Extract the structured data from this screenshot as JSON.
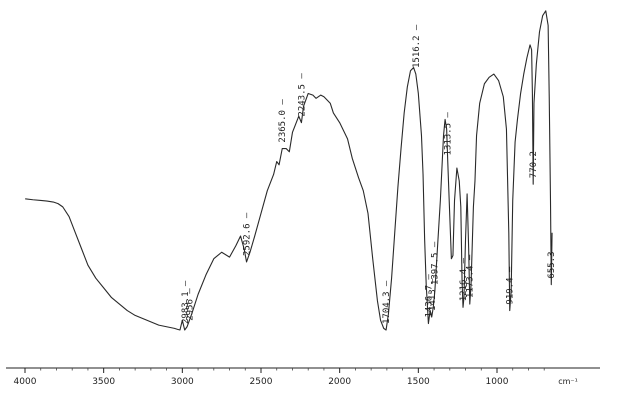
{
  "chart_data": {
    "type": "line",
    "title": "",
    "xlabel": "",
    "ylabel": "",
    "x_unit": "cm⁻¹",
    "x_reversed": true,
    "xlim": [
      4000,
      650
    ],
    "x_ticks": [
      4000,
      3500,
      3000,
      2500,
      2000,
      1500,
      1000
    ],
    "grid": false,
    "legend": "none",
    "line_color": "#2a2a2a",
    "series": [
      {
        "points": [
          [
            3999,
            0.595
          ],
          [
            3950,
            0.598
          ],
          [
            3900,
            0.6
          ],
          [
            3860,
            0.602
          ],
          [
            3820,
            0.605
          ],
          [
            3790,
            0.61
          ],
          [
            3760,
            0.62
          ],
          [
            3720,
            0.65
          ],
          [
            3680,
            0.7
          ],
          [
            3640,
            0.75
          ],
          [
            3600,
            0.8
          ],
          [
            3550,
            0.84
          ],
          [
            3500,
            0.87
          ],
          [
            3450,
            0.9
          ],
          [
            3400,
            0.92
          ],
          [
            3350,
            0.94
          ],
          [
            3300,
            0.955
          ],
          [
            3250,
            0.965
          ],
          [
            3200,
            0.975
          ],
          [
            3150,
            0.985
          ],
          [
            3100,
            0.99
          ],
          [
            3050,
            0.995
          ],
          [
            3030,
            0.998
          ],
          [
            3015,
            1.0
          ],
          [
            3000,
            0.97
          ],
          [
            2985,
            1.0
          ],
          [
            2970,
            0.99
          ],
          [
            2940,
            0.95
          ],
          [
            2900,
            0.89
          ],
          [
            2850,
            0.83
          ],
          [
            2800,
            0.78
          ],
          [
            2750,
            0.76
          ],
          [
            2700,
            0.775
          ],
          [
            2660,
            0.74
          ],
          [
            2630,
            0.71
          ],
          [
            2607,
            0.75
          ],
          [
            2592,
            0.79
          ],
          [
            2570,
            0.76
          ],
          [
            2540,
            0.71
          ],
          [
            2500,
            0.64
          ],
          [
            2460,
            0.57
          ],
          [
            2420,
            0.52
          ],
          [
            2400,
            0.48
          ],
          [
            2385,
            0.49
          ],
          [
            2365,
            0.44
          ],
          [
            2340,
            0.44
          ],
          [
            2320,
            0.45
          ],
          [
            2300,
            0.39
          ],
          [
            2260,
            0.34
          ],
          [
            2243,
            0.36
          ],
          [
            2230,
            0.31
          ],
          [
            2200,
            0.27
          ],
          [
            2170,
            0.275
          ],
          [
            2150,
            0.285
          ],
          [
            2120,
            0.275
          ],
          [
            2100,
            0.28
          ],
          [
            2080,
            0.29
          ],
          [
            2060,
            0.3
          ],
          [
            2040,
            0.33
          ],
          [
            2000,
            0.36
          ],
          [
            1950,
            0.41
          ],
          [
            1920,
            0.47
          ],
          [
            1880,
            0.53
          ],
          [
            1850,
            0.57
          ],
          [
            1820,
            0.64
          ],
          [
            1790,
            0.78
          ],
          [
            1760,
            0.91
          ],
          [
            1740,
            0.97
          ],
          [
            1720,
            0.995
          ],
          [
            1705,
            1.0
          ],
          [
            1690,
            0.95
          ],
          [
            1670,
            0.84
          ],
          [
            1650,
            0.7
          ],
          [
            1630,
            0.56
          ],
          [
            1610,
            0.44
          ],
          [
            1590,
            0.33
          ],
          [
            1570,
            0.25
          ],
          [
            1550,
            0.2
          ],
          [
            1530,
            0.19
          ],
          [
            1516,
            0.21
          ],
          [
            1500,
            0.27
          ],
          [
            1480,
            0.4
          ],
          [
            1470,
            0.52
          ],
          [
            1460,
            0.72
          ],
          [
            1450,
            0.86
          ],
          [
            1436,
            0.98
          ],
          [
            1425,
            0.94
          ],
          [
            1415,
            0.96
          ],
          [
            1405,
            0.93
          ],
          [
            1395,
            0.88
          ],
          [
            1380,
            0.76
          ],
          [
            1360,
            0.6
          ],
          [
            1340,
            0.4
          ],
          [
            1330,
            0.35
          ],
          [
            1320,
            0.38
          ],
          [
            1313,
            0.48
          ],
          [
            1300,
            0.65
          ],
          [
            1290,
            0.78
          ],
          [
            1280,
            0.77
          ],
          [
            1270,
            0.6
          ],
          [
            1255,
            0.5
          ],
          [
            1240,
            0.54
          ],
          [
            1230,
            0.62
          ],
          [
            1222,
            0.85
          ],
          [
            1216,
            0.93
          ],
          [
            1210,
            0.9
          ],
          [
            1200,
            0.72
          ],
          [
            1190,
            0.58
          ],
          [
            1180,
            0.75
          ],
          [
            1173,
            0.92
          ],
          [
            1165,
            0.86
          ],
          [
            1150,
            0.62
          ],
          [
            1140,
            0.54
          ],
          [
            1130,
            0.4
          ],
          [
            1110,
            0.3
          ],
          [
            1080,
            0.24
          ],
          [
            1050,
            0.22
          ],
          [
            1020,
            0.21
          ],
          [
            990,
            0.23
          ],
          [
            960,
            0.28
          ],
          [
            940,
            0.38
          ],
          [
            925,
            0.7
          ],
          [
            919,
            0.94
          ],
          [
            910,
            0.88
          ],
          [
            900,
            0.6
          ],
          [
            885,
            0.42
          ],
          [
            870,
            0.35
          ],
          [
            850,
            0.27
          ],
          [
            830,
            0.21
          ],
          [
            810,
            0.16
          ],
          [
            790,
            0.12
          ],
          [
            780,
            0.135
          ],
          [
            775,
            0.27
          ],
          [
            770,
            0.55
          ],
          [
            765,
            0.3
          ],
          [
            750,
            0.18
          ],
          [
            730,
            0.08
          ],
          [
            710,
            0.03
          ],
          [
            690,
            0.015
          ],
          [
            675,
            0.06
          ],
          [
            668,
            0.28
          ],
          [
            660,
            0.6
          ],
          [
            655,
            0.86
          ],
          [
            650,
            0.7
          ]
        ]
      }
    ],
    "annotations": [
      {
        "label": "2983.1",
        "x": 2983
      },
      {
        "label": "2956",
        "x": 2956
      },
      {
        "label": "2592.6",
        "x": 2592.6
      },
      {
        "label": "2365.0",
        "x": 2365
      },
      {
        "label": "2243.5",
        "x": 2243.5
      },
      {
        "label": "1704.3",
        "x": 1704.3
      },
      {
        "label": "1516.2",
        "x": 1516.2
      },
      {
        "label": "1436.7",
        "x": 1436.7
      },
      {
        "label": "1413",
        "x": 1413
      },
      {
        "label": "1397.5",
        "x": 1397.5
      },
      {
        "label": "1313.5",
        "x": 1313.5
      },
      {
        "label": "1216.4",
        "x": 1216.4
      },
      {
        "label": "1173.4",
        "x": 1173.4
      },
      {
        "label": "919.4",
        "x": 919.4
      },
      {
        "label": "770.2",
        "x": 770.2
      },
      {
        "label": "655.3",
        "x": 655.3
      }
    ]
  }
}
